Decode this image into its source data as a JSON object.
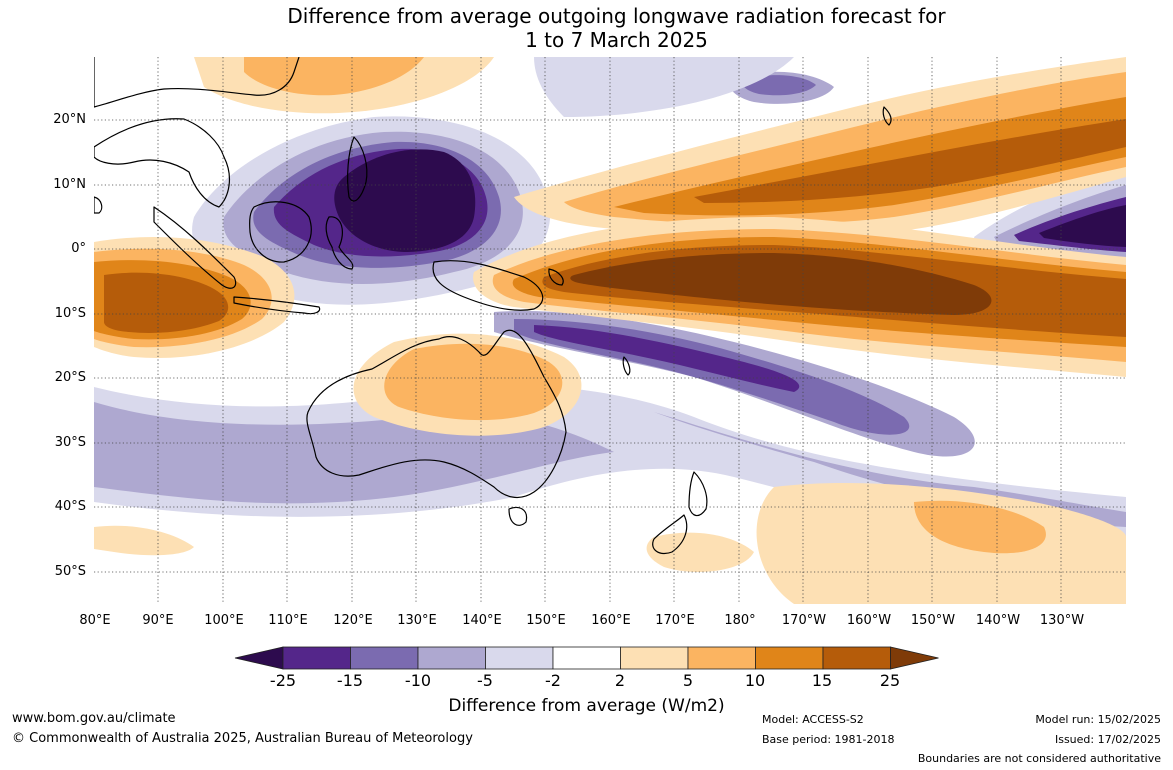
{
  "title": {
    "line1": "Difference from average outgoing longwave radiation forecast for",
    "line2": "1 to 7 March 2025"
  },
  "map": {
    "lat_labels": [
      "20°N",
      "10°N",
      "0°",
      "10°S",
      "20°S",
      "30°S",
      "40°S",
      "50°S"
    ],
    "lon_labels": [
      "80°E",
      "90°E",
      "100°E",
      "110°E",
      "120°E",
      "130°E",
      "140°E",
      "150°E",
      "160°E",
      "170°E",
      "180°",
      "170°W",
      "160°W",
      "150°W",
      "140°W",
      "130°W"
    ]
  },
  "colorbar": {
    "labels": [
      "-25",
      "-15",
      "-10",
      "-5",
      "-2",
      "2",
      "5",
      "10",
      "15",
      "25"
    ],
    "colors": [
      "#2d0b4e",
      "#54268a",
      "#7b6bb0",
      "#aea8d0",
      "#d9d9ec",
      "#ffffff",
      "#fde0b4",
      "#fbb461",
      "#e08519",
      "#b55c0a",
      "#7f3b08"
    ],
    "title": "Difference from average (W/m2)"
  },
  "footer": {
    "website": "www.bom.gov.au/climate",
    "copyright": "© Commonwealth of Australia 2025, Australian Bureau of Meteorology",
    "model": "Model: ACCESS-S2",
    "base_period": "Base period: 1981-2018",
    "model_run": "Model run: 15/02/2025",
    "issued": "Issued: 17/02/2025",
    "disclaimer": "Boundaries are not considered authoritative"
  }
}
